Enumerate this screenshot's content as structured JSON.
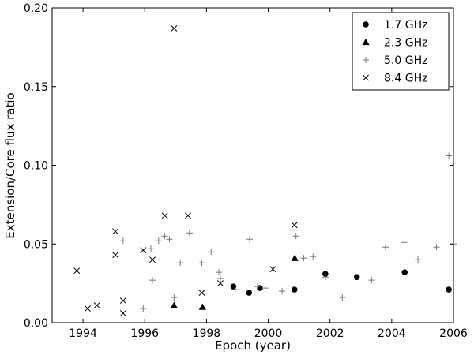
{
  "chart_data": {
    "type": "scatter",
    "title": "",
    "xlabel": "Epoch (year)",
    "ylabel": "Extension/Core flux ratio",
    "xlim": [
      1993,
      2006
    ],
    "ylim": [
      0,
      0.2
    ],
    "xticks": [
      1994,
      1996,
      1998,
      2000,
      2002,
      2004,
      2006
    ],
    "yticks": [
      0.0,
      0.05,
      0.1,
      0.15,
      0.2
    ],
    "ytick_labels": [
      "0.00",
      "0.05",
      "0.10",
      "0.15",
      "0.20"
    ],
    "grid": false,
    "legend_position": "top-right",
    "series": [
      {
        "name": "1.7 GHz",
        "marker": "circle",
        "color": "#000000",
        "points": [
          [
            1998.87,
            0.023
          ],
          [
            1999.38,
            0.019
          ],
          [
            1999.73,
            0.022
          ],
          [
            2000.85,
            0.021
          ],
          [
            2001.85,
            0.031
          ],
          [
            2002.87,
            0.029
          ],
          [
            2004.42,
            0.032
          ],
          [
            2005.85,
            0.021
          ]
        ]
      },
      {
        "name": "2.3 GHz",
        "marker": "triangle",
        "color": "#000000",
        "points": [
          [
            1996.95,
            0.011
          ],
          [
            1997.87,
            0.01
          ],
          [
            2000.86,
            0.041
          ]
        ]
      },
      {
        "name": "5.0 GHz",
        "marker": "plus",
        "color": "#777777",
        "points": [
          [
            1995.3,
            0.052
          ],
          [
            1995.95,
            0.009
          ],
          [
            1996.2,
            0.047
          ],
          [
            1996.25,
            0.027
          ],
          [
            1996.45,
            0.052
          ],
          [
            1996.65,
            0.055
          ],
          [
            1996.8,
            0.053
          ],
          [
            1996.95,
            0.016
          ],
          [
            1997.15,
            0.038
          ],
          [
            1997.45,
            0.057
          ],
          [
            1997.85,
            0.038
          ],
          [
            1998.15,
            0.045
          ],
          [
            1998.4,
            0.032
          ],
          [
            1998.45,
            0.028
          ],
          [
            1998.93,
            0.021
          ],
          [
            1999.4,
            0.053
          ],
          [
            1999.65,
            0.023
          ],
          [
            1999.9,
            0.022
          ],
          [
            2000.45,
            0.02
          ],
          [
            2000.9,
            0.055
          ],
          [
            2001.15,
            0.041
          ],
          [
            2001.45,
            0.042
          ],
          [
            2001.85,
            0.029
          ],
          [
            2002.4,
            0.016
          ],
          [
            2003.35,
            0.027
          ],
          [
            2003.8,
            0.048
          ],
          [
            2004.4,
            0.051
          ],
          [
            2004.85,
            0.04
          ],
          [
            2005.45,
            0.048
          ],
          [
            2005.85,
            0.106
          ],
          [
            2006.0,
            0.05
          ]
        ]
      },
      {
        "name": "8.4 GHz",
        "marker": "x",
        "color": "#000000",
        "points": [
          [
            1993.8,
            0.033
          ],
          [
            1994.15,
            0.009
          ],
          [
            1994.45,
            0.011
          ],
          [
            1995.05,
            0.058
          ],
          [
            1995.05,
            0.043
          ],
          [
            1995.3,
            0.014
          ],
          [
            1995.3,
            0.006
          ],
          [
            1995.95,
            0.046
          ],
          [
            1996.25,
            0.04
          ],
          [
            1996.65,
            0.068
          ],
          [
            1996.95,
            0.187
          ],
          [
            1997.4,
            0.068
          ],
          [
            1997.85,
            0.019
          ],
          [
            1998.45,
            0.025
          ],
          [
            2000.15,
            0.034
          ],
          [
            2000.85,
            0.062
          ]
        ]
      }
    ]
  }
}
